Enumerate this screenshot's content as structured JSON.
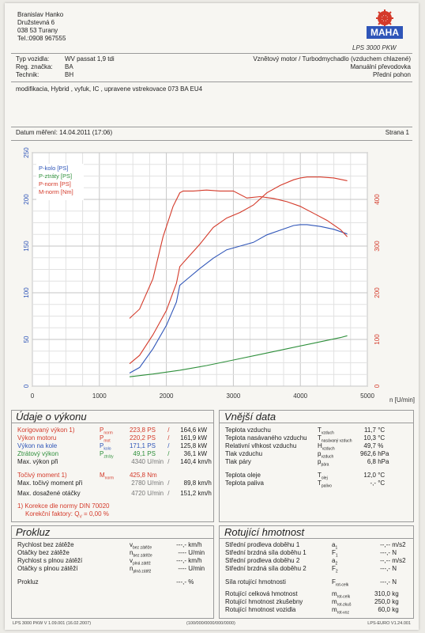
{
  "owner": {
    "name": "Branislav Hanko",
    "street": "Družstevná 6",
    "city": "038 53 Turany",
    "phone": "Tel.:0908 967555"
  },
  "brand": {
    "logo_text": "MAHA",
    "model": "LPS 3000 PKW"
  },
  "vehicle": {
    "type_label": "Typ vozidla:",
    "type_value": "WV passat 1,9 tdi",
    "reg_label": "Reg. značka:",
    "reg_value": "BA",
    "tech_label": "Technik:",
    "tech_value": "BH",
    "engine": "Vznětový motor / Turbodmychadlo (vzduchem chlazené)",
    "gearbox": "Manuální převodovka",
    "drive": "Přední pohon",
    "note": "modifikacia, Hybrid , vyfuk, IC , upravene vstrekovace 073 BA EU4"
  },
  "meta": {
    "date": "Datum měření: 14.04.2011 (17:06)",
    "page": "Strana 1"
  },
  "chart_data": {
    "type": "line",
    "xlabel": "n [U/min]",
    "xlim": [
      0,
      5000
    ],
    "ylim_left": [
      0,
      250
    ],
    "ylim_right": [
      0,
      500
    ],
    "x_ticks": [
      "0",
      "1000",
      "2000",
      "3000",
      "4000",
      "5000"
    ],
    "y_ticks_left": [
      "0",
      "50",
      "100",
      "150",
      "200",
      "250"
    ],
    "y_ticks_right": [
      "0",
      "100",
      "200",
      "300",
      "400"
    ],
    "grid": true,
    "legend": "top-left",
    "series": [
      {
        "name": "P-kolo [PS]",
        "color": "#2f55b8",
        "axis": "left",
        "x": [
          1450,
          1600,
          1800,
          2000,
          2150,
          2200,
          2250,
          2300,
          2500,
          2700,
          2900,
          3100,
          3300,
          3500,
          3700,
          3900,
          4000,
          4100,
          4300,
          4500,
          4700
        ],
        "y": [
          14,
          20,
          40,
          65,
          90,
          108,
          111,
          114,
          126,
          137,
          146,
          150,
          154,
          162,
          167,
          172,
          173,
          173,
          171,
          168,
          163
        ]
      },
      {
        "name": "P-ztráty [PS]",
        "color": "#2e8f3b",
        "axis": "left",
        "x": [
          1450,
          1800,
          2200,
          2600,
          3000,
          3400,
          3800,
          4200,
          4600,
          4700
        ],
        "y": [
          10,
          13,
          17,
          22,
          28,
          34,
          40,
          46,
          52,
          54
        ]
      },
      {
        "name": "P-norm [PS]",
        "color": "#d43a2a",
        "axis": "left",
        "x": [
          1450,
          1600,
          1800,
          2000,
          2150,
          2200,
          2250,
          2300,
          2500,
          2700,
          2900,
          3100,
          3300,
          3500,
          3700,
          3900,
          4000,
          4100,
          4300,
          4500,
          4700
        ],
        "y": [
          24,
          33,
          55,
          81,
          110,
          128,
          132,
          136,
          152,
          170,
          180,
          186,
          194,
          207,
          215,
          221,
          223,
          224,
          224,
          223,
          220
        ]
      },
      {
        "name": "M-norm [Nm]",
        "color": "#d43a2a",
        "axis": "right",
        "x": [
          1450,
          1600,
          1800,
          1950,
          2100,
          2200,
          2250,
          2400,
          2600,
          2800,
          3000,
          3200,
          3400,
          3600,
          3800,
          4000,
          4200,
          4400,
          4600,
          4700
        ],
        "y": [
          145,
          165,
          230,
          320,
          385,
          414,
          418,
          418,
          420,
          418,
          418,
          403,
          406,
          402,
          395,
          385,
          370,
          355,
          335,
          320
        ]
      }
    ]
  },
  "perf": {
    "title": "Údaje o výkonu",
    "rows": [
      {
        "label": "Korigovaný výkon 1)",
        "sym": "P",
        "sub": "norm",
        "v1": "223,8",
        "u1": "PS",
        "sep": "/",
        "v2": "164,6",
        "u2": "kW",
        "cls": "red"
      },
      {
        "label": "Výkon motoru",
        "sym": "P",
        "sub": "mot",
        "v1": "220,2",
        "u1": "PS",
        "sep": "/",
        "v2": "161,9",
        "u2": "kW",
        "cls": "red"
      },
      {
        "label": "Výkon na kole",
        "sym": "P",
        "sub": "kolo",
        "v1": "171,1",
        "u1": "PS",
        "sep": "/",
        "v2": "125,8",
        "u2": "kW",
        "cls": "blue"
      },
      {
        "label": "Ztrátový výkon",
        "sym": "P",
        "sub": "ztráty",
        "v1": "49,1",
        "u1": "PS",
        "sep": "/",
        "v2": "36,1",
        "u2": "kW",
        "cls": "green"
      },
      {
        "label": "Max. výkon při",
        "sym": "",
        "sub": "",
        "v1": "4340",
        "u1": "U/min",
        "sep": "/",
        "v2": "140,4",
        "u2": "km/h",
        "cls": ""
      },
      {
        "label": "Točivý moment 1)",
        "sym": "M",
        "sub": "norm",
        "v1": "425,8",
        "u1": "Nm",
        "sep": "",
        "v2": "",
        "u2": "",
        "cls": "red"
      },
      {
        "label": "Max. točivý moment při",
        "sym": "",
        "sub": "",
        "v1": "2780",
        "u1": "U/min",
        "sep": "/",
        "v2": "89,8",
        "u2": "km/h",
        "cls": ""
      },
      {
        "label": "Max. dosažené otáčky",
        "sym": "",
        "sub": "",
        "v1": "4720",
        "u1": "U/min",
        "sep": "/",
        "v2": "151,2",
        "u2": "km/h",
        "cls": ""
      }
    ],
    "corr1": "1) Korekce dle normy DIN 70020",
    "corr2": "Korekční faktory: Q",
    "corr2b": "V",
    "corr2c": "= 0,00 %"
  },
  "ext": {
    "title": "Vnější data",
    "rows": [
      {
        "label": "Teplota vzduchu",
        "sym": "T",
        "sub": "vzduch",
        "val": "11,7",
        "unit": "°C"
      },
      {
        "label": "Teplota nasávaného vzduchu",
        "sym": "T",
        "sub": "nasávaný vzduch",
        "val": "10,3",
        "unit": "°C"
      },
      {
        "label": "Relativní vlhkost vzduchu",
        "sym": "H",
        "sub": "vzduch",
        "val": "49,7",
        "unit": "%"
      },
      {
        "label": "Tlak vzduchu",
        "sym": "p",
        "sub": "vzduch",
        "val": "962,6",
        "unit": "hPa"
      },
      {
        "label": "Tlak páry",
        "sym": "p",
        "sub": "pára",
        "val": "6,8",
        "unit": "hPa"
      },
      {
        "label": "Teplota oleje",
        "sym": "T",
        "sub": "olej",
        "val": "12,0",
        "unit": "°C"
      },
      {
        "label": "Teplota paliva",
        "sym": "T",
        "sub": "palivo",
        "val": "-,-",
        "unit": "°C"
      }
    ]
  },
  "prokluz": {
    "title": "Prokluz",
    "rows": [
      {
        "label": "Rychlost bez zátěže",
        "sym": "v",
        "sub": "bez zátěže",
        "val": "---,-",
        "unit": "km/h"
      },
      {
        "label": "Otáčky bez zátěže",
        "sym": "n",
        "sub": "bez zátěže",
        "val": "----",
        "unit": "U/min"
      },
      {
        "label": "Rychlost s plnou zátěží",
        "sym": "v",
        "sub": "plná zátěž",
        "val": "---,-",
        "unit": "km/h"
      },
      {
        "label": "Otáčky s plnou zátěží",
        "sym": "n",
        "sub": "plná zátěž",
        "val": "----",
        "unit": "U/min"
      },
      {
        "label": "Prokluz",
        "sym": "",
        "sub": "",
        "val": "---,-",
        "unit": "%"
      }
    ]
  },
  "rot": {
    "title": "Rotující hmotnost",
    "rows": [
      {
        "label": "Střední prodleva doběhu 1",
        "sym": "a",
        "sub": "1",
        "val": "--,--",
        "unit": "m/s2"
      },
      {
        "label": "Střední brzdná síla doběhu 1",
        "sym": "F",
        "sub": "1",
        "val": "---,-",
        "unit": "N"
      },
      {
        "label": "Střední prodleva doběhu 2",
        "sym": "a",
        "sub": "2",
        "val": "--,--",
        "unit": "m/s2"
      },
      {
        "label": "Střední brzdná síla doběhu 2",
        "sym": "F",
        "sub": "2",
        "val": "---,-",
        "unit": "N"
      },
      {
        "label": "Síla rotující hmotnosti",
        "sym": "F",
        "sub": "rot-celk",
        "val": "---,-",
        "unit": "N"
      },
      {
        "label": "Rotující celková hmotnost",
        "sym": "m",
        "sub": "rot-celk",
        "val": "310,0",
        "unit": "kg"
      },
      {
        "label": "Rotující hmotnost zkušebny",
        "sym": "m",
        "sub": "rot-zkuš",
        "val": "250,0",
        "unit": "kg"
      },
      {
        "label": "Rotující hmotnost vozidla",
        "sym": "m",
        "sub": "rot-voz",
        "val": "60,0",
        "unit": "kg"
      }
    ]
  },
  "footer": {
    "left": "LPS 3000 PKW V 1.09.001 (16.02.2007)",
    "mid": "(100/000/0000/000/0000)",
    "right": "LPS-EURO V1.24.001"
  }
}
